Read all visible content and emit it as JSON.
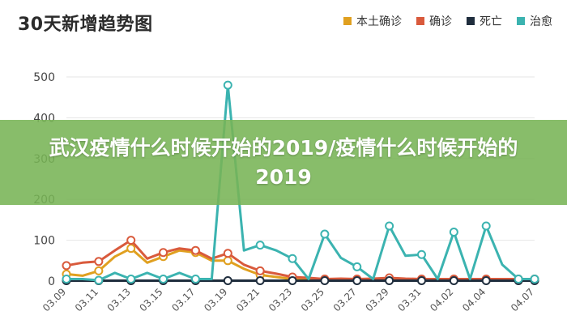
{
  "overlay": {
    "title": "武汉疫情什么时候开始的2019/疫情什么时候开始的2019"
  },
  "chart_data": {
    "type": "line",
    "title": "30天新增趋势图",
    "xlabel": "",
    "ylabel": "",
    "ylim": [
      0,
      500
    ],
    "yticks": [
      0,
      100,
      200,
      300,
      400,
      500
    ],
    "grid": true,
    "legend_position": "top-right",
    "x": [
      "03.09",
      "03.10",
      "03.11",
      "03.12",
      "03.13",
      "03.14",
      "03.15",
      "03.16",
      "03.17",
      "03.18",
      "03.19",
      "03.20",
      "03.21",
      "03.22",
      "03.23",
      "03.24",
      "03.25",
      "03.26",
      "03.27",
      "03.28",
      "03.29",
      "03.30",
      "03.31",
      "04.01",
      "04.02",
      "04.03",
      "04.04",
      "04.05",
      "04.06",
      "04.07"
    ],
    "xtick_labels": [
      "03.09",
      "03.11",
      "03.13",
      "03.15",
      "03.17",
      "03.19",
      "03.21",
      "03.23",
      "03.25",
      "03.27",
      "03.29",
      "03.31",
      "04.02",
      "04.04",
      "04.07"
    ],
    "series": [
      {
        "name": "本土确诊",
        "color": "#e0a020",
        "values": [
          17,
          13,
          25,
          60,
          80,
          45,
          60,
          75,
          70,
          50,
          50,
          30,
          15,
          10,
          5,
          3,
          2,
          2,
          2,
          2,
          2,
          2,
          2,
          2,
          2,
          2,
          2,
          2,
          2,
          2
        ]
      },
      {
        "name": "确诊",
        "color": "#d95a3c",
        "values": [
          38,
          45,
          48,
          75,
          100,
          55,
          70,
          80,
          75,
          55,
          68,
          40,
          25,
          18,
          10,
          8,
          5,
          6,
          5,
          6,
          8,
          6,
          5,
          5,
          5,
          5,
          5,
          5,
          5,
          5
        ]
      },
      {
        "name": "死亡",
        "color": "#1f2d3d",
        "values": [
          1,
          1,
          1,
          1,
          1,
          1,
          1,
          1,
          1,
          1,
          1,
          1,
          1,
          1,
          1,
          1,
          1,
          1,
          1,
          1,
          1,
          1,
          1,
          1,
          1,
          1,
          1,
          1,
          1,
          1
        ]
      },
      {
        "name": "治愈",
        "color": "#3bb3b0",
        "values": [
          5,
          5,
          2,
          20,
          5,
          20,
          5,
          20,
          5,
          5,
          480,
          75,
          88,
          75,
          55,
          5,
          115,
          57,
          35,
          5,
          135,
          62,
          65,
          5,
          120,
          5,
          135,
          40,
          5,
          5
        ]
      }
    ]
  }
}
